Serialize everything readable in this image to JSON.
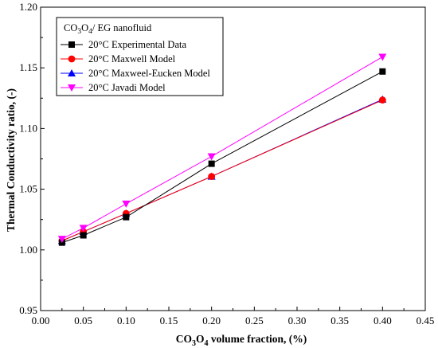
{
  "chart_data": {
    "type": "line",
    "xlabel": {
      "prefix": "CO",
      "sub1": "3",
      "mid": "O",
      "sub2": "4",
      "suffix": " volume fraction, (%)"
    },
    "ylabel": "Thermal Conductivity ratio, (-)",
    "xlim": [
      0.0,
      0.45
    ],
    "ylim": [
      0.95,
      1.2
    ],
    "xticks": [
      "0.00",
      "0.05",
      "0.10",
      "0.15",
      "0.20",
      "0.25",
      "0.30",
      "0.35",
      "0.40",
      "0.45"
    ],
    "yticks": [
      "0.95",
      "1.00",
      "1.05",
      "1.10",
      "1.15",
      "1.20"
    ],
    "grid": false,
    "legend_placement": "top-left",
    "legend_title": {
      "prefix": "CO",
      "sub1": "3",
      "mid": "O",
      "sub2": "4",
      "suffix": "/ EG nanofluid"
    },
    "x": [
      0.025,
      0.05,
      0.1,
      0.2,
      0.4
    ],
    "series": [
      {
        "name": "20°C Experimental Data",
        "marker": "square",
        "color": "#000000",
        "values": [
          1.006,
          1.012,
          1.027,
          1.071,
          1.147
        ]
      },
      {
        "name": "20°C Maxwell Model",
        "marker": "circle",
        "color": "#ff0000",
        "values": [
          1.0075,
          1.015,
          1.03,
          1.0605,
          1.1235
        ]
      },
      {
        "name": "20°C Maxweel-Eucken Model",
        "marker": "triangle-up",
        "color": "#0000ff",
        "values": [
          1.0075,
          1.015,
          1.03,
          1.0605,
          1.124
        ]
      },
      {
        "name": "20°C Javadi Model",
        "marker": "triangle-down",
        "color": "#ff00ff",
        "values": [
          1.009,
          1.018,
          1.038,
          1.077,
          1.159
        ]
      }
    ]
  }
}
